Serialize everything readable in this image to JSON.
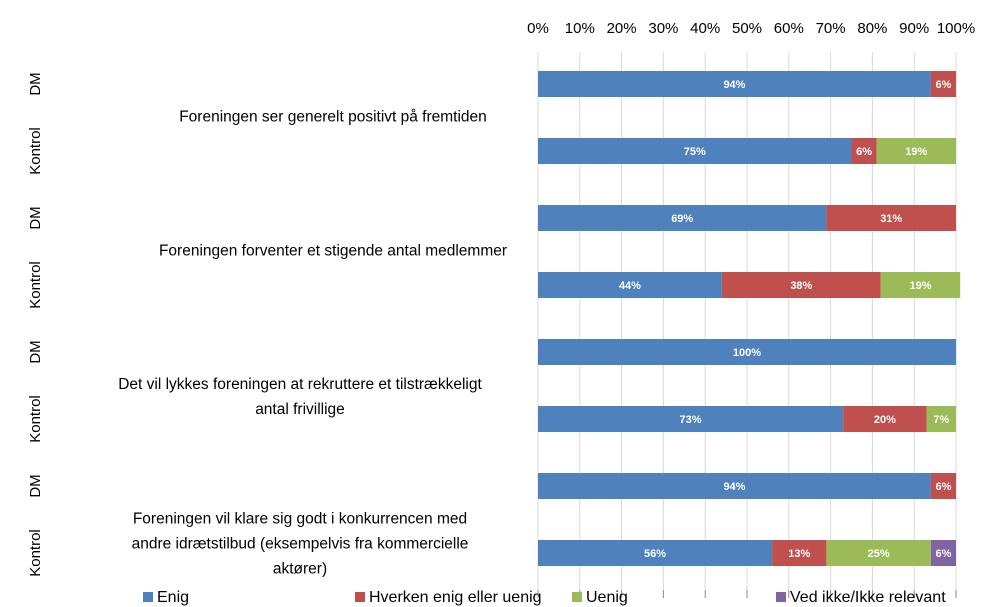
{
  "chart_data": {
    "type": "stacked-barh",
    "groups": [
      [
        "Foreningen ser generelt positivt på fremtiden"
      ],
      [
        "Foreningen forventer et stigende antal medlemmer"
      ],
      [
        "Det vil lykkes foreningen at rekruttere et tilstrækkeligt",
        "antal frivillige"
      ],
      [
        "Foreningen vil klare sig godt i konkurrencen med",
        "andre idrætstilbud (eksempelvis fra kommercielle",
        "aktører)"
      ]
    ],
    "categories": [
      "DM",
      "Kontrol",
      "DM",
      "Kontrol",
      "DM",
      "Kontrol",
      "DM",
      "Kontrol"
    ],
    "series": [
      {
        "name": "Enig",
        "color": "#4f81bd",
        "values": [
          94,
          75,
          69,
          44,
          100,
          73,
          94,
          56
        ],
        "value_labels": [
          "94%",
          "75%",
          "69%",
          "44%",
          "100%",
          "73%",
          "94%",
          "56%"
        ]
      },
      {
        "name": "Hverken enig eller uenig",
        "color": "#c0504d",
        "values": [
          6,
          6,
          31,
          38,
          0,
          20,
          6,
          13
        ],
        "value_labels": [
          "6%",
          "6%",
          "31%",
          "38%",
          null,
          "20%",
          "6%",
          "13%"
        ]
      },
      {
        "name": "Uenig",
        "color": "#9bbb59",
        "values": [
          0,
          19,
          0,
          19,
          0,
          7,
          0,
          25
        ],
        "value_labels": [
          null,
          "19%",
          null,
          "19%",
          null,
          "7%",
          null,
          "25%"
        ]
      },
      {
        "name": "Ved ikke/Ikke relevant",
        "color": "#8064a2",
        "values": [
          0,
          0,
          0,
          0,
          0,
          0,
          0,
          6
        ],
        "value_labels": [
          null,
          null,
          null,
          null,
          null,
          null,
          null,
          "6%"
        ]
      }
    ],
    "xlim": [
      0,
      100
    ],
    "xticks": [
      {
        "value": 0,
        "label": "0%"
      },
      {
        "value": 10,
        "label": "10%"
      },
      {
        "value": 20,
        "label": "20%"
      },
      {
        "value": 30,
        "label": "30%"
      },
      {
        "value": 40,
        "label": "40%"
      },
      {
        "value": 50,
        "label": "50%"
      },
      {
        "value": 60,
        "label": "60%"
      },
      {
        "value": 70,
        "label": "70%"
      },
      {
        "value": 80,
        "label": "80%"
      },
      {
        "value": 90,
        "label": "90%"
      },
      {
        "value": 100,
        "label": "100%"
      }
    ],
    "grid": true,
    "legend": "bottom"
  }
}
